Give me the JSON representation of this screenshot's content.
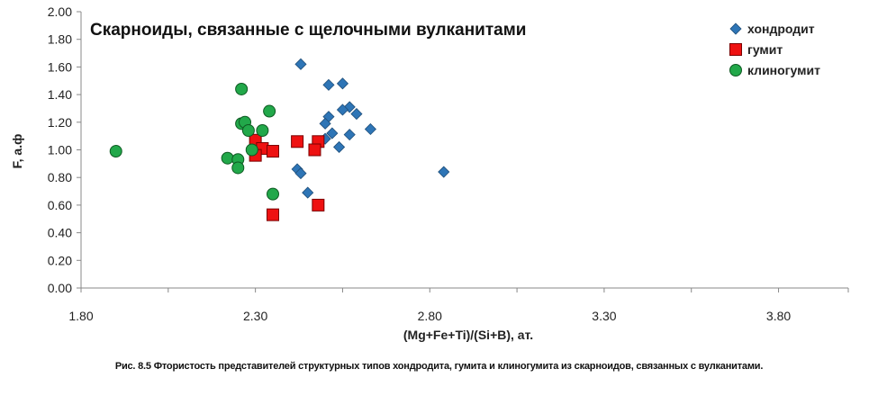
{
  "chart_data": {
    "type": "scatter",
    "title": "Скарноиды, связанные с щелочными вулканитами",
    "xlabel": "(Mg+Fe+Ti)/(Si+B), ат.",
    "ylabel": "F, а.ф",
    "xlim": [
      1.8,
      4.0
    ],
    "ylim": [
      0.0,
      2.0
    ],
    "x_ticks": [
      "1.80",
      "2.30",
      "2.80",
      "3.30",
      "3.80"
    ],
    "y_ticks": [
      "0.00",
      "0.20",
      "0.40",
      "0.60",
      "0.80",
      "1.00",
      "1.20",
      "1.40",
      "1.60",
      "1.80",
      "2.00"
    ],
    "legend_position": "top-right",
    "grid": false,
    "series": [
      {
        "name": "хондродит",
        "marker": "diamond",
        "color": "#2E75B6",
        "points": [
          [
            2.43,
            1.62
          ],
          [
            2.51,
            1.47
          ],
          [
            2.55,
            1.48
          ],
          [
            2.57,
            1.31
          ],
          [
            2.55,
            1.29
          ],
          [
            2.59,
            1.26
          ],
          [
            2.51,
            1.24
          ],
          [
            2.5,
            1.19
          ],
          [
            2.63,
            1.15
          ],
          [
            2.52,
            1.12
          ],
          [
            2.57,
            1.11
          ],
          [
            2.5,
            1.08
          ],
          [
            2.54,
            1.02
          ],
          [
            2.42,
            0.86
          ],
          [
            2.43,
            0.83
          ],
          [
            2.45,
            0.69
          ],
          [
            2.84,
            0.84
          ]
        ]
      },
      {
        "name": "гумит",
        "marker": "square",
        "color": "#EE1111",
        "points": [
          [
            2.3,
            1.07
          ],
          [
            2.42,
            1.06
          ],
          [
            2.48,
            1.06
          ],
          [
            2.32,
            1.01
          ],
          [
            2.47,
            1.0
          ],
          [
            2.35,
            0.99
          ],
          [
            2.3,
            0.96
          ],
          [
            2.35,
            0.53
          ],
          [
            2.48,
            0.6
          ]
        ]
      },
      {
        "name": "клиногумит",
        "marker": "circle",
        "color": "#22A84A",
        "points": [
          [
            1.9,
            0.99
          ],
          [
            2.26,
            1.44
          ],
          [
            2.34,
            1.28
          ],
          [
            2.26,
            1.19
          ],
          [
            2.27,
            1.2
          ],
          [
            2.28,
            1.14
          ],
          [
            2.32,
            1.14
          ],
          [
            2.29,
            1.0
          ],
          [
            2.22,
            0.94
          ],
          [
            2.25,
            0.93
          ],
          [
            2.25,
            0.87
          ],
          [
            2.35,
            0.68
          ]
        ]
      }
    ]
  },
  "caption": "Рис. 8.5 Фтористость представителей структурных типов хондродита, гумита и клиногумита из скарноидов, связанных с вулканитами."
}
